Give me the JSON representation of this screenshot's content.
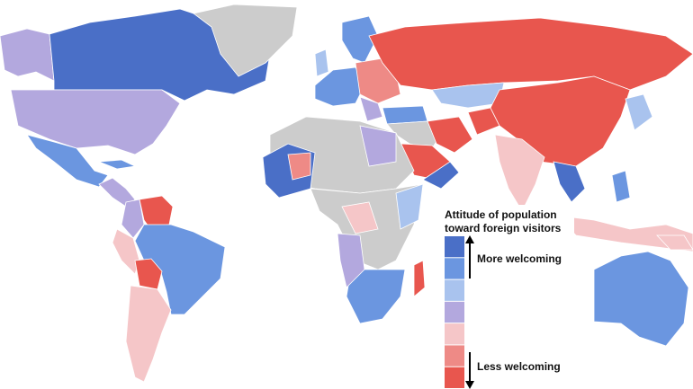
{
  "legend": {
    "title_lines": [
      "Attitude of population",
      "toward foreign visitors"
    ],
    "more_label": "More welcoming",
    "less_label": "Less welcoming",
    "colors": [
      "#4a6fc7",
      "#6b96e0",
      "#a9c3ee",
      "#b3a8de",
      "#f5c6c8",
      "#ee8a86",
      "#e8564e"
    ]
  }
}
